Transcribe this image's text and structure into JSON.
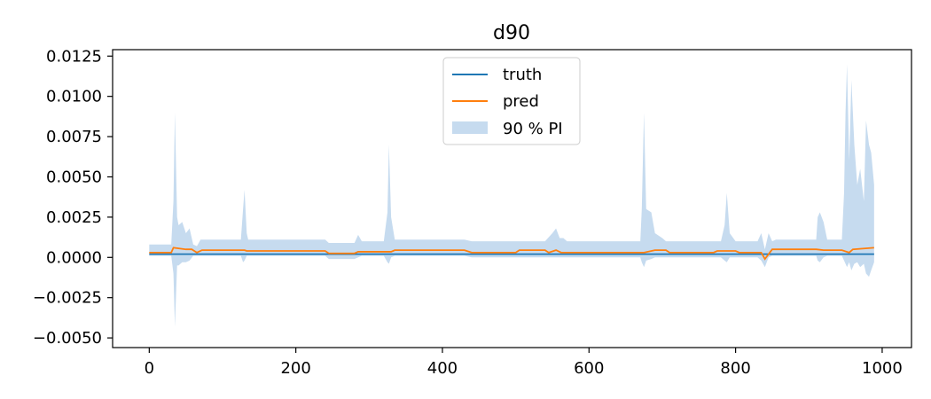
{
  "chart_data": {
    "type": "line",
    "title": "d90",
    "xlabel": "",
    "ylabel": "",
    "xlim": [
      -50,
      1040
    ],
    "ylim": [
      -0.0056,
      0.0129
    ],
    "x_ticks": [
      0,
      200,
      400,
      600,
      800,
      1000
    ],
    "x_tick_labels": [
      "0",
      "200",
      "400",
      "600",
      "800",
      "1000"
    ],
    "y_ticks": [
      -0.005,
      -0.0025,
      0.0,
      0.0025,
      0.005,
      0.0075,
      0.01,
      0.0125
    ],
    "y_tick_labels": [
      "−0.0050",
      "−0.0025",
      "0.0000",
      "0.0025",
      "0.0050",
      "0.0075",
      "0.0100",
      "0.0125"
    ],
    "grid": false,
    "legend_position": "top-center",
    "legend": [
      "truth",
      "pred",
      "90 % PI"
    ],
    "colors": {
      "truth": "#1f77b4",
      "pred": "#ff7f0e",
      "interval": "#c6dbef"
    },
    "series": [
      {
        "name": "truth",
        "x": [
          0,
          989
        ],
        "y": [
          0.0002,
          0.0002
        ]
      },
      {
        "name": "pred",
        "x": [
          0,
          30,
          33,
          50,
          58,
          65,
          72,
          130,
          133,
          240,
          245,
          280,
          285,
          330,
          335,
          430,
          440,
          500,
          505,
          540,
          545,
          555,
          562,
          675,
          690,
          705,
          710,
          770,
          775,
          800,
          805,
          835,
          840,
          850,
          855,
          910,
          920,
          945,
          955,
          960,
          989
        ],
        "y": [
          0.0003,
          0.0003,
          0.0006,
          0.0005,
          0.0005,
          0.0003,
          0.00045,
          0.00045,
          0.0004,
          0.0004,
          0.00025,
          0.00025,
          0.00035,
          0.00035,
          0.00045,
          0.00045,
          0.0003,
          0.0003,
          0.00045,
          0.00045,
          0.0003,
          0.00045,
          0.0003,
          0.0003,
          0.00045,
          0.00045,
          0.0003,
          0.0003,
          0.0004,
          0.0004,
          0.0003,
          0.0003,
          -0.0001,
          0.0005,
          0.0005,
          0.0005,
          0.00045,
          0.00045,
          0.0003,
          0.0005,
          0.0006
        ]
      },
      {
        "name": "90 % PI",
        "x": [
          0,
          25,
          30,
          33,
          35,
          38,
          40,
          45,
          50,
          55,
          60,
          65,
          70,
          75,
          125,
          128,
          130,
          133,
          135,
          240,
          245,
          280,
          285,
          290,
          320,
          325,
          327,
          330,
          335,
          340,
          430,
          440,
          540,
          550,
          555,
          560,
          565,
          570,
          670,
          672,
          675,
          678,
          685,
          690,
          700,
          705,
          710,
          780,
          785,
          788,
          792,
          800,
          805,
          830,
          835,
          840,
          845,
          850,
          855,
          910,
          912,
          915,
          920,
          925,
          945,
          948,
          950,
          952,
          955,
          958,
          962,
          966,
          970,
          975,
          978,
          982,
          985,
          989
        ],
        "upper": [
          0.0008,
          0.0008,
          0.0008,
          0.0035,
          0.009,
          0.0025,
          0.002,
          0.0022,
          0.0015,
          0.0018,
          0.0008,
          0.0007,
          0.0011,
          0.0011,
          0.0011,
          0.003,
          0.0042,
          0.0015,
          0.0011,
          0.0011,
          0.0009,
          0.0009,
          0.0014,
          0.001,
          0.001,
          0.0028,
          0.007,
          0.0025,
          0.0011,
          0.0011,
          0.0011,
          0.001,
          0.001,
          0.0015,
          0.0018,
          0.0012,
          0.0012,
          0.001,
          0.001,
          0.003,
          0.009,
          0.003,
          0.0028,
          0.0015,
          0.0012,
          0.001,
          0.001,
          0.001,
          0.002,
          0.004,
          0.0015,
          0.001,
          0.001,
          0.001,
          0.0015,
          0.0005,
          0.0015,
          0.001,
          0.0011,
          0.0011,
          0.0025,
          0.0028,
          0.0022,
          0.0011,
          0.0011,
          0.004,
          0.009,
          0.012,
          0.006,
          0.011,
          0.007,
          0.0045,
          0.0055,
          0.0035,
          0.0085,
          0.007,
          0.0065,
          0.0045
        ],
        "lower": [
          0.0001,
          0.0001,
          0.0001,
          -0.001,
          -0.0043,
          -0.0005,
          -0.0005,
          -0.0003,
          -0.0003,
          -0.0002,
          0.0001,
          0.0001,
          0.0001,
          0.0001,
          0.0001,
          -0.0003,
          -0.0002,
          0.0001,
          0.0001,
          0.0001,
          -0.0001,
          -0.0001,
          0.0,
          0.0001,
          0.0001,
          -0.0003,
          -0.0004,
          0.0,
          0.0001,
          0.0001,
          0.0001,
          0.0,
          0.0,
          0.0,
          0.0,
          0.0,
          0.0,
          0.0,
          0.0,
          -0.0003,
          -0.0006,
          -0.0002,
          -0.0001,
          0.0,
          0.0,
          0.0,
          0.0,
          0.0,
          -0.0002,
          -0.0003,
          0.0,
          0.0,
          0.0,
          0.0,
          -0.0002,
          -0.0006,
          0.0,
          0.0001,
          0.0001,
          0.0001,
          -0.0002,
          -0.0003,
          0.0,
          0.0001,
          0.0001,
          -0.0002,
          -0.0004,
          -0.0006,
          -0.0003,
          -0.0008,
          -0.0004,
          -0.0003,
          -0.0006,
          -0.0004,
          -0.001,
          -0.0012,
          -0.0008,
          -0.0003
        ]
      }
    ]
  }
}
